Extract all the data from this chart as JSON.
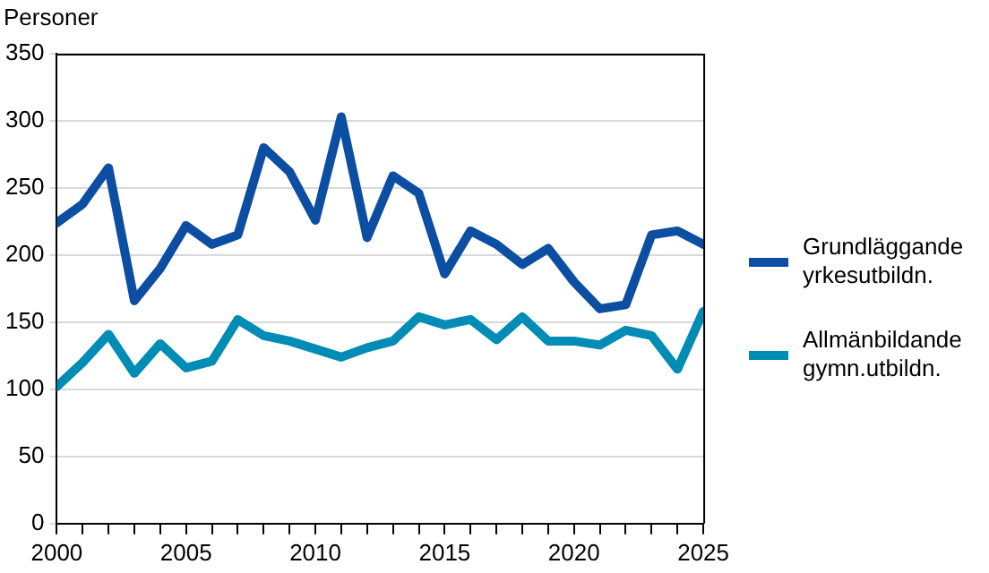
{
  "chart_data": {
    "type": "line",
    "ylabel": "Personer",
    "x": [
      2000,
      2001,
      2002,
      2003,
      2004,
      2005,
      2006,
      2007,
      2008,
      2009,
      2010,
      2011,
      2012,
      2013,
      2014,
      2015,
      2016,
      2017,
      2018,
      2019,
      2020,
      2021,
      2022,
      2023,
      2024,
      2025
    ],
    "series": [
      {
        "name": "Grundläggande yrkesutbildn.",
        "color": "#0b4ea2",
        "values": [
          224,
          238,
          265,
          166,
          190,
          222,
          208,
          215,
          280,
          262,
          226,
          303,
          213,
          259,
          246,
          186,
          218,
          208,
          193,
          205,
          180,
          160,
          163,
          215,
          218,
          208
        ]
      },
      {
        "name": "Allmänbildande gymn.utbildn.",
        "color": "#008cb4",
        "values": [
          102,
          120,
          141,
          112,
          134,
          116,
          121,
          152,
          140,
          136,
          130,
          124,
          131,
          136,
          154,
          148,
          152,
          137,
          154,
          136,
          136,
          133,
          144,
          140,
          115,
          158
        ]
      }
    ],
    "xlim": [
      2000,
      2025
    ],
    "xticks": [
      2000,
      {
        "value": 2001,
        "label": null
      },
      {
        "value": 2002,
        "label": null
      },
      {
        "value": 2003,
        "label": null
      },
      {
        "value": 2004,
        "label": null
      },
      2005,
      {
        "value": 2006,
        "label": null
      },
      {
        "value": 2007,
        "label": null
      },
      {
        "value": 2008,
        "label": null
      },
      {
        "value": 2009,
        "label": null
      },
      2010,
      {
        "value": 2011,
        "label": null
      },
      {
        "value": 2012,
        "label": null
      },
      {
        "value": 2013,
        "label": null
      },
      {
        "value": 2014,
        "label": null
      },
      2015,
      {
        "value": 2016,
        "label": null
      },
      {
        "value": 2017,
        "label": null
      },
      {
        "value": 2018,
        "label": null
      },
      {
        "value": 2019,
        "label": null
      },
      2020,
      {
        "value": 2021,
        "label": null
      },
      {
        "value": 2022,
        "label": null
      },
      {
        "value": 2023,
        "label": null
      },
      {
        "value": 2024,
        "label": null
      },
      2025
    ],
    "ylim": [
      0,
      350
    ],
    "yticks": [
      0,
      50,
      100,
      150,
      200,
      250,
      300,
      350
    ],
    "grid": "y",
    "legend": "right",
    "marker": "none",
    "line_style": "solid"
  }
}
